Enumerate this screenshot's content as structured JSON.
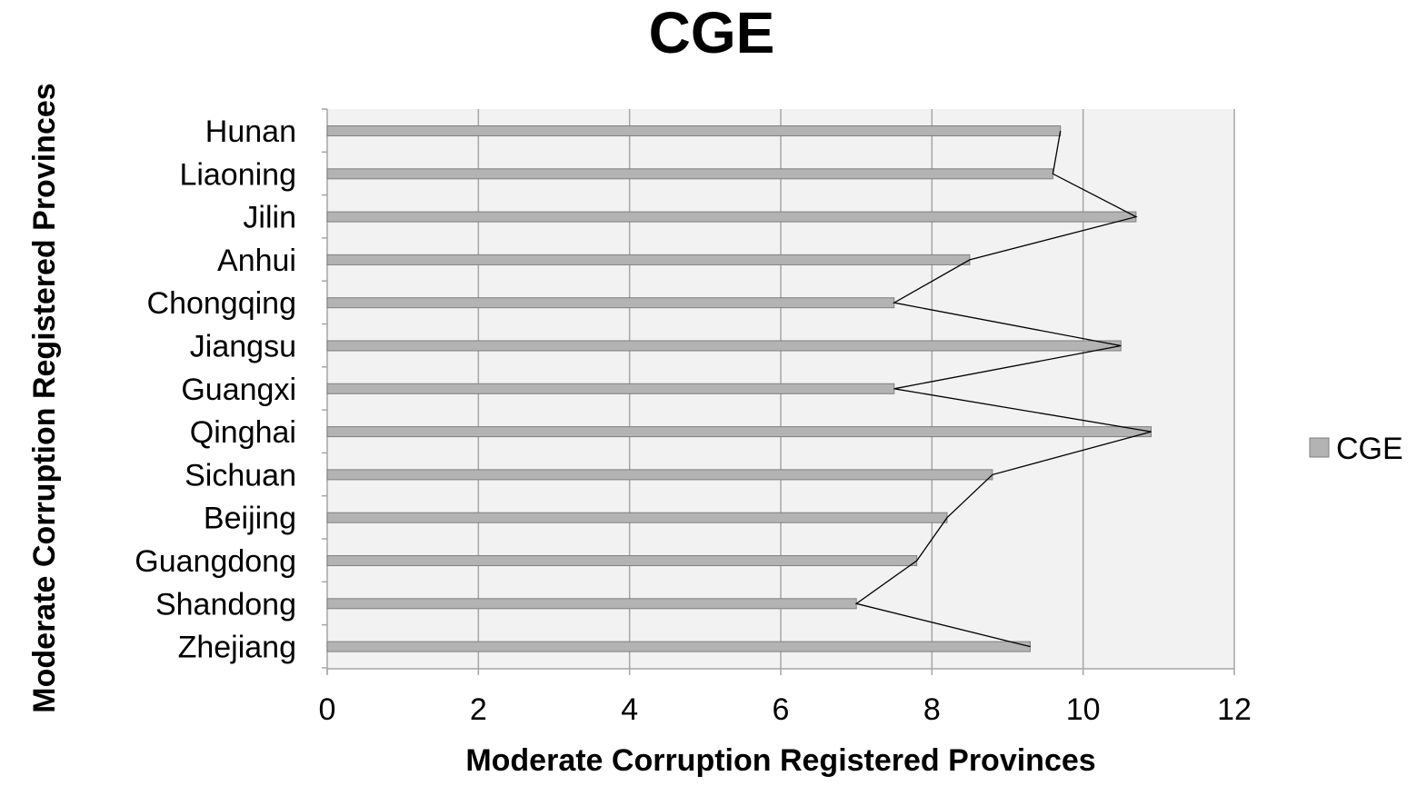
{
  "chart_data": {
    "type": "bar",
    "orientation": "horizontal",
    "title": "CGE",
    "xlabel": "Moderate Corruption Registered Provinces",
    "ylabel": "Moderate Corruption Registered Provinces",
    "categories": [
      "Hunan",
      "Liaoning",
      "Jilin",
      "Anhui",
      "Chongqing",
      "Jiangsu",
      "Guangxi",
      "Qinghai",
      "Sichuan",
      "Beijing",
      "Guangdong",
      "Shandong",
      "Zhejiang"
    ],
    "series": [
      {
        "name": "CGE",
        "values": [
          9.7,
          9.6,
          10.7,
          8.5,
          7.5,
          10.5,
          7.5,
          10.9,
          8.8,
          8.2,
          7.8,
          7.0,
          9.3
        ]
      }
    ],
    "xlim": [
      0,
      12
    ],
    "xticks": [
      0,
      2,
      4,
      6,
      8,
      10,
      12
    ],
    "grid": "vertical",
    "legend_position": "right",
    "colors": {
      "bar": "#b3b3b3",
      "bar_edge": "#7f7f7f",
      "plot_bg": "#f2f2f2",
      "grid": "#a6a6a6",
      "line": "#000000"
    }
  }
}
